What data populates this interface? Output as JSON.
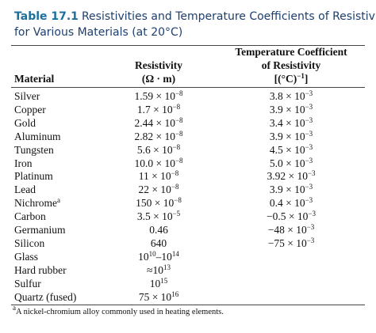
{
  "title": {
    "label": "Table 17.1",
    "lines": [
      "Resistivities and Temperature Coefficients of Resistivity",
      "for Various Materials (at 20°C)"
    ]
  },
  "table": {
    "header": [
      [
        [
          "Material"
        ]
      ],
      [
        [
          "Resistivity"
        ],
        [
          "(Ω · m)"
        ]
      ],
      [
        [
          "Temperature Coefficient"
        ],
        [
          "of Resistivity"
        ],
        [
          "[(°C)",
          "−1",
          "]"
        ]
      ]
    ],
    "rows": [
      [
        [
          "Silver"
        ],
        [
          "1.59 × 10",
          "−8"
        ],
        [
          "3.8 × 10",
          "−3"
        ]
      ],
      [
        [
          "Copper"
        ],
        [
          "1.7 × 10",
          "−8"
        ],
        [
          "3.9 × 10",
          "−3"
        ]
      ],
      [
        [
          "Gold"
        ],
        [
          "2.44 × 10",
          "−8"
        ],
        [
          "3.4 × 10",
          "−3"
        ]
      ],
      [
        [
          "Aluminum"
        ],
        [
          "2.82 × 10",
          "−8"
        ],
        [
          "3.9 × 10",
          "−3"
        ]
      ],
      [
        [
          "Tungsten"
        ],
        [
          "5.6 × 10",
          "−8"
        ],
        [
          "4.5 × 10",
          "−3"
        ]
      ],
      [
        [
          "Iron"
        ],
        [
          "10.0 × 10",
          "−8"
        ],
        [
          "5.0 × 10",
          "−3"
        ]
      ],
      [
        [
          "Platinum"
        ],
        [
          "11 × 10",
          "−8"
        ],
        [
          "3.92 × 10",
          "−3"
        ]
      ],
      [
        [
          "Lead"
        ],
        [
          "22 × 10",
          "−8"
        ],
        [
          "3.9 × 10",
          "−3"
        ]
      ],
      [
        [
          "Nichrome",
          "a"
        ],
        [
          "150 × 10",
          "−8"
        ],
        [
          "0.4 × 10",
          "−3"
        ]
      ],
      [
        [
          "Carbon"
        ],
        [
          "3.5 × 10",
          "−5"
        ],
        [
          "−0.5 × 10",
          "−3"
        ]
      ],
      [
        [
          "Germanium"
        ],
        [
          "0.46"
        ],
        [
          "−48 × 10",
          "−3"
        ]
      ],
      [
        [
          "Silicon"
        ],
        [
          "640"
        ],
        [
          "−75 × 10",
          "−3"
        ]
      ],
      [
        [
          "Glass"
        ],
        [
          "10",
          "10",
          "–10",
          "14"
        ],
        []
      ],
      [
        [
          "Hard rubber"
        ],
        [
          "≈10",
          "13"
        ],
        []
      ],
      [
        [
          "Sulfur"
        ],
        [
          "10",
          "15"
        ],
        []
      ],
      [
        [
          "Quartz (fused)"
        ],
        [
          "75 × 10",
          "16"
        ],
        []
      ]
    ]
  },
  "footnote": {
    "mark": "a",
    "text": "A nickel-chromium alloy commonly used in heating elements."
  }
}
